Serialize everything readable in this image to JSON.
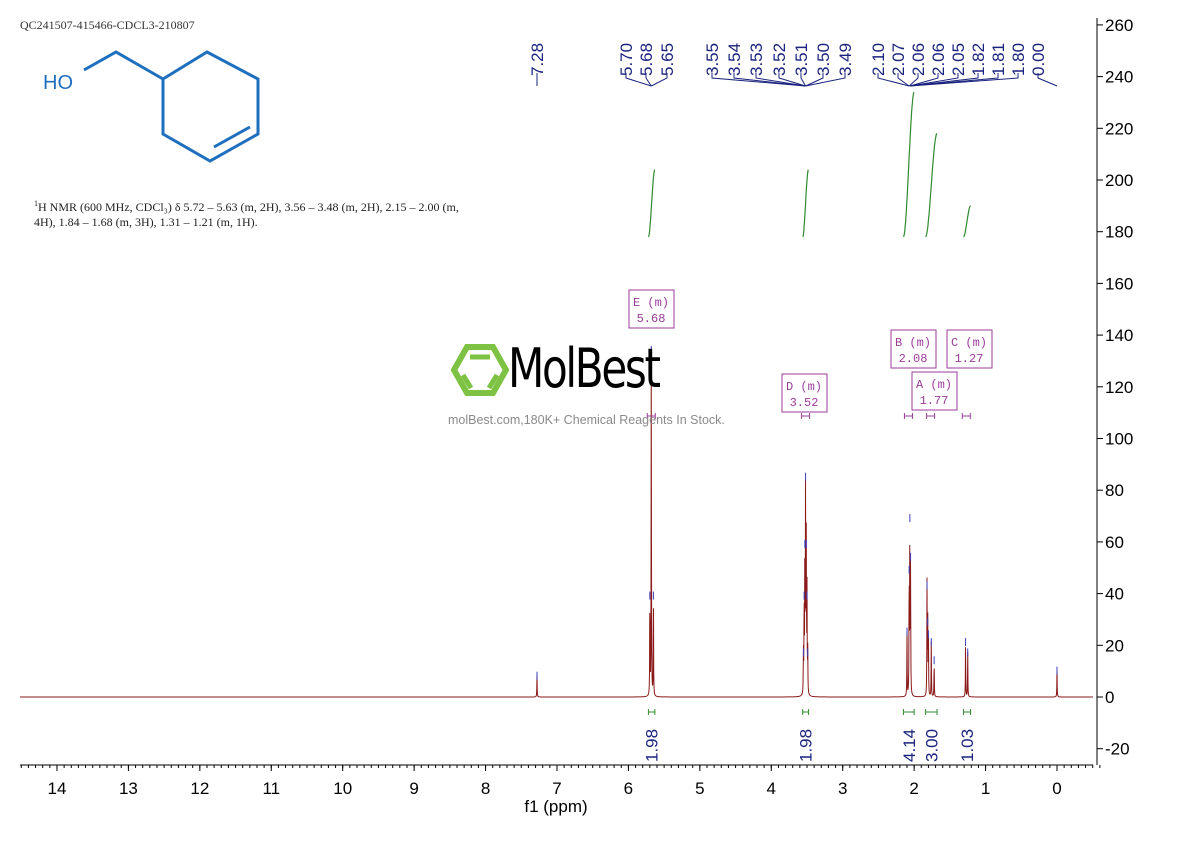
{
  "sample_id": "QC241507-415466-CDCL3-210807",
  "structure": {
    "atom_label": "HO",
    "color": "#1f6fbf"
  },
  "nmr_description": {
    "prefix_sup": "1",
    "text": "H NMR (600 MHz, CDCl₃) δ 5.72 – 5.63 (m, 2H), 3.56 – 3.48 (m, 2H), 2.15 – 2.00 (m, 4H), 1.84 – 1.68 (m, 3H), 1.31 – 1.21 (m, 1H)."
  },
  "watermark": {
    "brand": "MolBest",
    "subtitle": "molBest.com,180K+ Chemical Reagents In Stock.",
    "logo_color": "#7dc242"
  },
  "chart_data": {
    "type": "line",
    "xlabel": "f1 (ppm)",
    "ylabel": "",
    "xlim": [
      14.5,
      -0.5
    ],
    "ylim": [
      -26,
      262
    ],
    "x_reversed": true,
    "xticks": [
      14,
      13,
      12,
      11,
      10,
      9,
      8,
      7,
      6,
      5,
      4,
      3,
      2,
      1,
      0
    ],
    "yticks": [
      -20,
      0,
      20,
      40,
      60,
      80,
      100,
      120,
      140,
      160,
      180,
      200,
      220,
      240,
      260
    ],
    "grid": false,
    "colors": {
      "spectrum": "#8b1a1a",
      "peak_labels": "#1a237e",
      "integrals": "#2e8b2e",
      "multiplets": "#9b3c9b"
    },
    "peaks": [
      {
        "ppm": 7.28,
        "height": 9
      },
      {
        "ppm": 5.7,
        "height": 40
      },
      {
        "ppm": 5.68,
        "height": 135
      },
      {
        "ppm": 5.65,
        "height": 40
      },
      {
        "ppm": 3.55,
        "height": 18
      },
      {
        "ppm": 3.54,
        "height": 40
      },
      {
        "ppm": 3.53,
        "height": 60
      },
      {
        "ppm": 3.52,
        "height": 86
      },
      {
        "ppm": 3.51,
        "height": 60
      },
      {
        "ppm": 3.5,
        "height": 40
      },
      {
        "ppm": 3.49,
        "height": 18
      },
      {
        "ppm": 2.1,
        "height": 26
      },
      {
        "ppm": 2.07,
        "height": 50
      },
      {
        "ppm": 2.06,
        "height": 70
      },
      {
        "ppm": 2.05,
        "height": 55
      },
      {
        "ppm": 1.82,
        "height": 44
      },
      {
        "ppm": 1.81,
        "height": 30
      },
      {
        "ppm": 1.8,
        "height": 25
      },
      {
        "ppm": 1.76,
        "height": 22
      },
      {
        "ppm": 1.72,
        "height": 15
      },
      {
        "ppm": 1.28,
        "height": 22
      },
      {
        "ppm": 1.25,
        "height": 18
      },
      {
        "ppm": 0.0,
        "height": 11
      }
    ],
    "peak_labels": [
      "7.28",
      "5.70",
      "5.68",
      "5.65",
      "3.55",
      "3.54",
      "3.53",
      "3.52",
      "3.51",
      "3.50",
      "3.49",
      "2.10",
      "2.07",
      "2.06",
      "2.06",
      "2.05",
      "1.82",
      "1.81",
      "1.80",
      "0.00"
    ],
    "integrals": [
      {
        "from": 5.72,
        "to": 5.63,
        "value": "1.98",
        "y_start": 178,
        "y_end": 204
      },
      {
        "from": 3.56,
        "to": 3.48,
        "value": "1.98",
        "y_start": 178,
        "y_end": 204
      },
      {
        "from": 2.15,
        "to": 2.0,
        "value": "4.14",
        "y_start": 178,
        "y_end": 234
      },
      {
        "from": 1.84,
        "to": 1.68,
        "value": "3.00",
        "y_start": 178,
        "y_end": 218
      },
      {
        "from": 1.31,
        "to": 1.21,
        "value": "1.03",
        "y_start": 178,
        "y_end": 190
      }
    ],
    "multiplets": [
      {
        "label": "E (m)",
        "shift": "5.68",
        "ppm": 5.68
      },
      {
        "label": "D (m)",
        "shift": "3.52",
        "ppm": 3.52
      },
      {
        "label": "B (m)",
        "shift": "2.08",
        "ppm": 2.08
      },
      {
        "label": "C (m)",
        "shift": "1.27",
        "ppm": 1.27
      },
      {
        "label": "A (m)",
        "shift": "1.77",
        "ppm": 1.77
      }
    ]
  }
}
